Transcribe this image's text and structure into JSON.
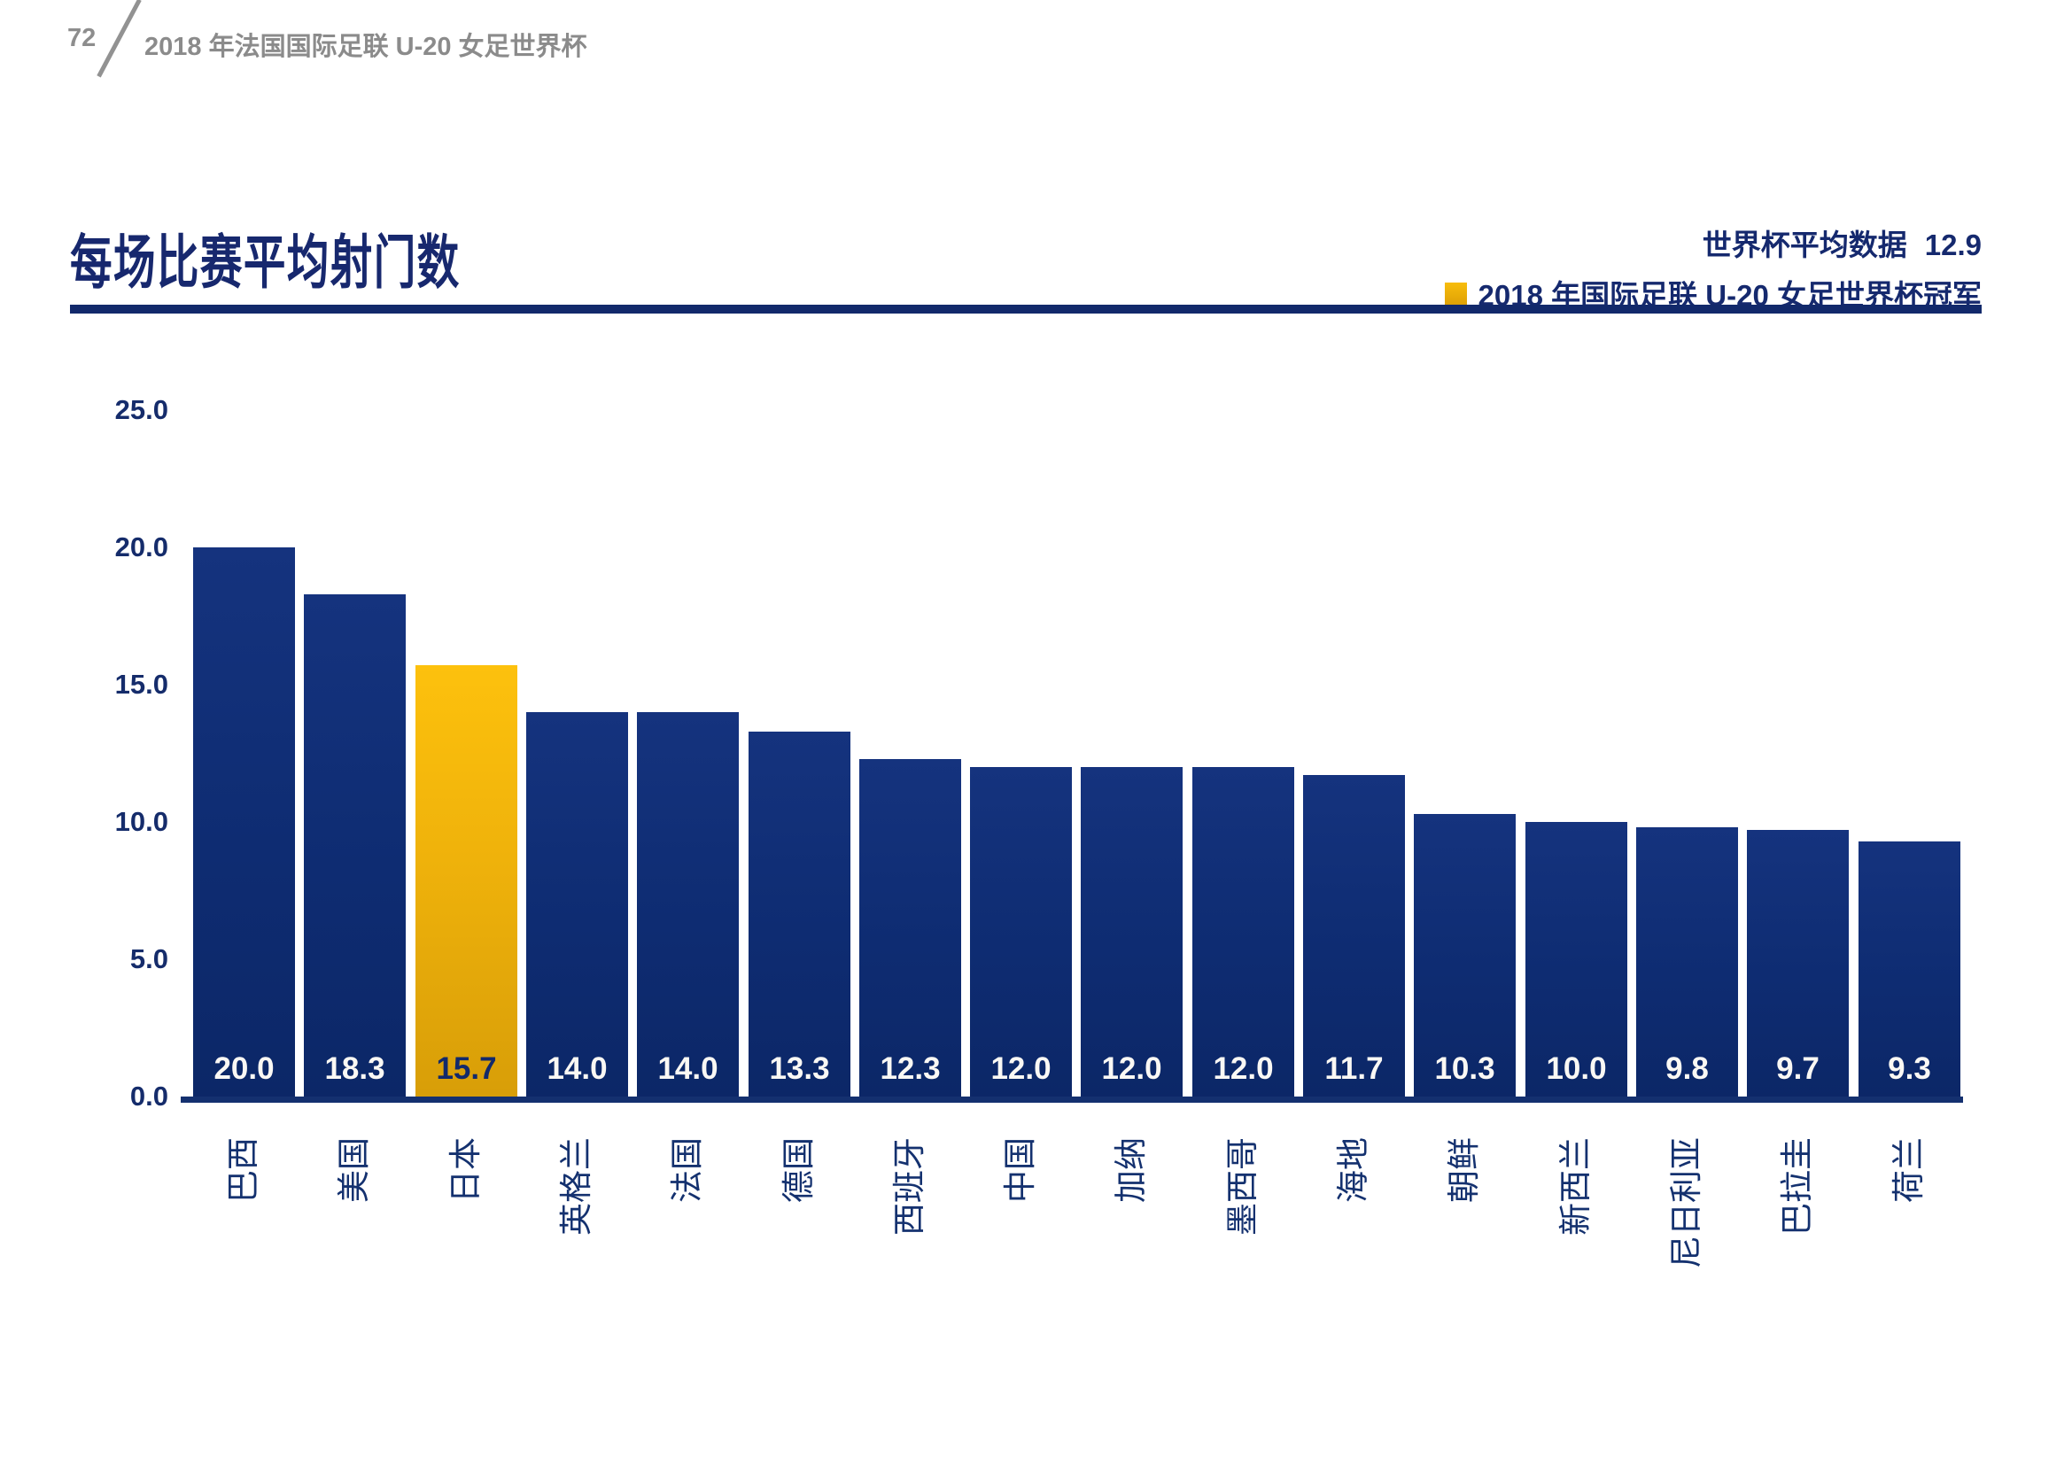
{
  "page": {
    "number": "72",
    "header_title": "2018 年法国国际足联 U-20 女足世界杯"
  },
  "title": "每场比赛平均射门数",
  "legend": {
    "average_label": "世界杯平均数据",
    "average_value": "12.9",
    "champion_label": "2018 年国际足联 U-20 女足世界杯冠军",
    "champion_swatch_color": "#EEB00A"
  },
  "colors": {
    "navy_text": "#15296E",
    "bar_navy_top": "#15337E",
    "bar_navy_bottom": "#0C2767",
    "bar_gold_top": "#FDC10D",
    "bar_gold_bottom": "#D89E08",
    "header_gray": "#8B8B8B",
    "value_label_white": "#FAF8F4"
  },
  "chart_data": {
    "type": "bar",
    "title": "每场比赛平均射门数",
    "categories": [
      "巴西",
      "美国",
      "日本",
      "英格兰",
      "法国",
      "德国",
      "西班牙",
      "中国",
      "加纳",
      "墨西哥",
      "海地",
      "朝鲜",
      "新西兰",
      "尼日利亚",
      "巴拉圭",
      "荷兰"
    ],
    "values": [
      20.0,
      18.3,
      15.7,
      14.0,
      14.0,
      13.3,
      12.3,
      12.0,
      12.0,
      12.0,
      11.7,
      10.3,
      10.0,
      9.8,
      9.7,
      9.3
    ],
    "value_labels": [
      "20.0",
      "18.3",
      "15.7",
      "14.0",
      "14.0",
      "13.3",
      "12.3",
      "12.0",
      "12.0",
      "12.0",
      "11.7",
      "10.3",
      "10.0",
      "9.8",
      "9.7",
      "9.3"
    ],
    "highlight_index": 2,
    "highlight_meaning": "2018 年国际足联 U-20 女足世界杯冠军",
    "world_cup_average": 12.9,
    "yticks": [
      "25.0",
      "20.0",
      "15.0",
      "10.0",
      "5.0",
      "0.0"
    ],
    "ylim": [
      0,
      25
    ],
    "xlabel": "",
    "ylabel": "",
    "grid": false,
    "legend_position": "top-right",
    "x_tick_rotation_deg": -90
  }
}
